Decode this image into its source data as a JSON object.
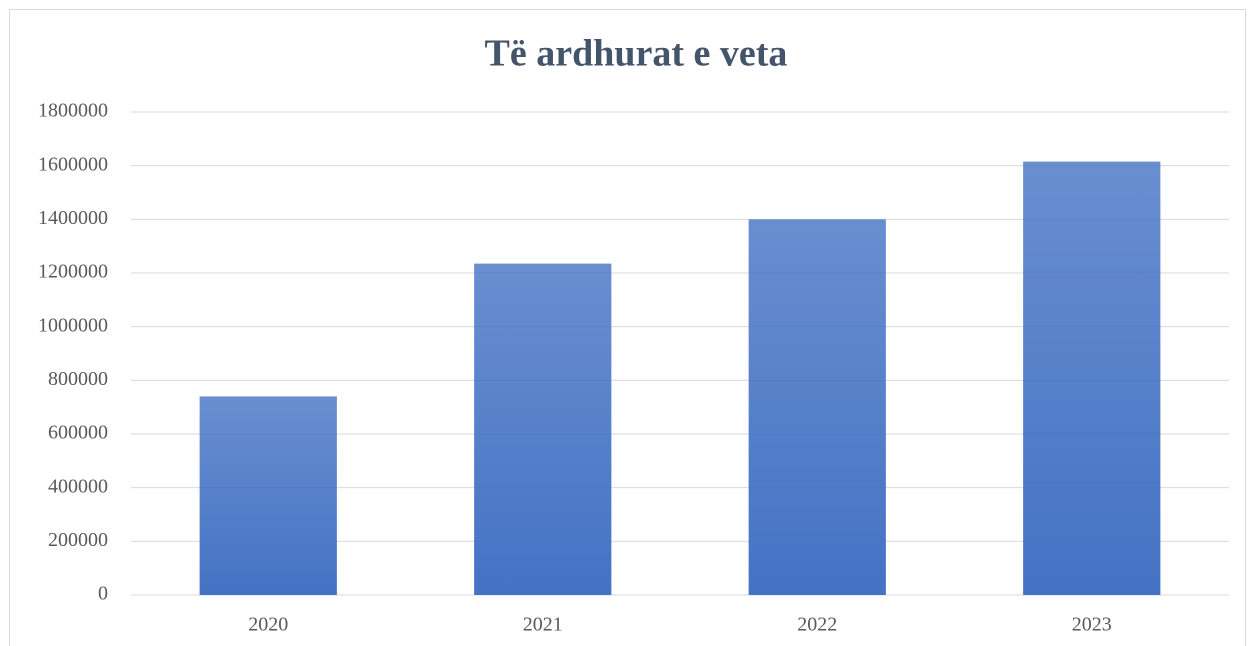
{
  "chart_data": {
    "type": "bar",
    "title": "Të ardhurat e veta",
    "categories": [
      "2020",
      "2021",
      "2022",
      "2023"
    ],
    "values": [
      740000,
      1235000,
      1400000,
      1615000
    ],
    "color": "#4472c4",
    "ylim": [
      0,
      1800000
    ],
    "yticks": [
      0,
      200000,
      400000,
      600000,
      800000,
      1000000,
      1200000,
      1400000,
      1600000,
      1800000
    ],
    "grid": true
  }
}
